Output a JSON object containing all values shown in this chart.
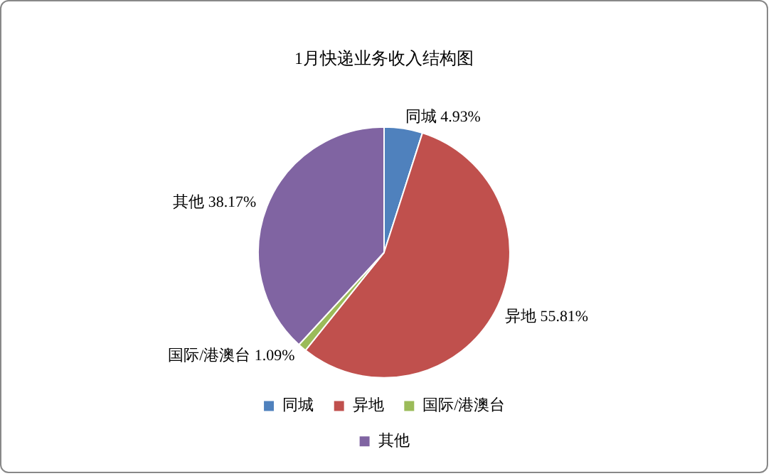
{
  "chart_data": {
    "type": "pie",
    "title": "1月快递业务收入结构图",
    "categories": [
      "同城",
      "异地",
      "国际/港澳台",
      "其他"
    ],
    "values": [
      4.93,
      55.81,
      1.09,
      38.17
    ],
    "value_labels": [
      "4.93%",
      "55.81%",
      "1.09%",
      "38.17%"
    ],
    "colors": [
      "#4f81bd",
      "#c0504d",
      "#9bbb59",
      "#8064a2"
    ],
    "legend": "bottom"
  }
}
